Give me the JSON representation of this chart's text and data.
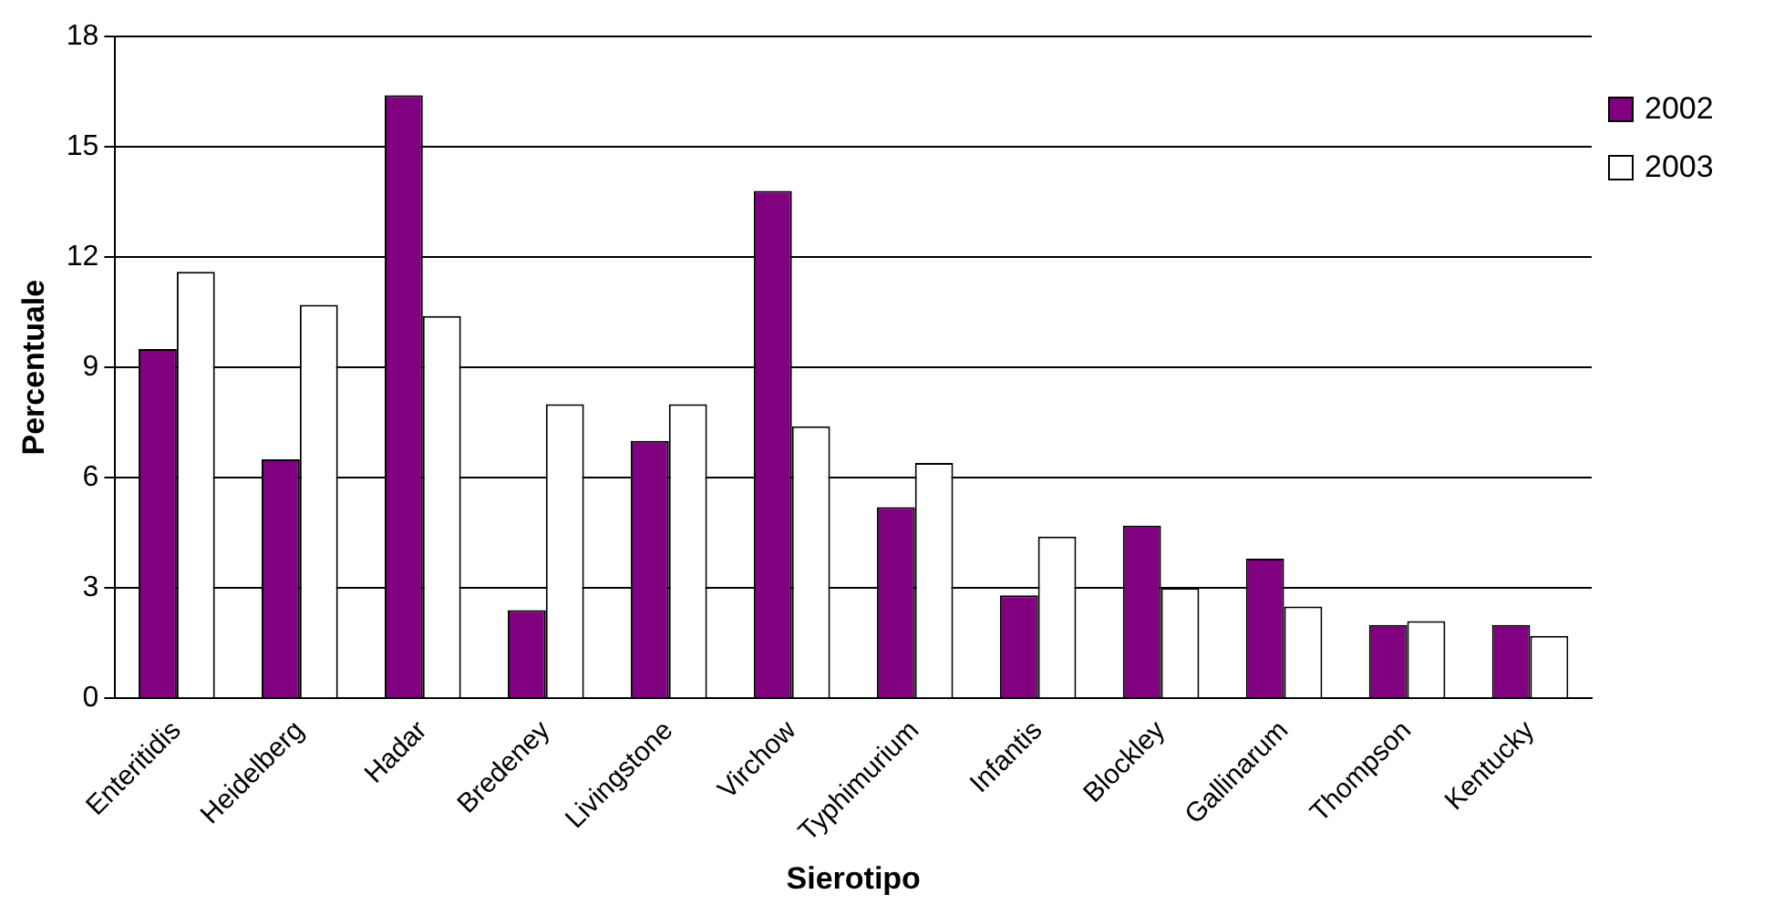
{
  "chart_data": {
    "type": "bar",
    "xlabel": "Sierotipo",
    "ylabel": "Percentuale",
    "categories": [
      "Enteritidis",
      "Heidelberg",
      "Hadar",
      "Bredeney",
      "Livingstone",
      "Virchow",
      "Typhimurium",
      "Infantis",
      "Blockley",
      "Gallinarum",
      "Thompson",
      "Kentucky"
    ],
    "series": [
      {
        "name": "2002",
        "color": "#800080",
        "values": [
          9.5,
          6.5,
          16.4,
          2.4,
          7.0,
          13.8,
          5.2,
          2.8,
          4.7,
          3.8,
          2.0,
          2.0
        ]
      },
      {
        "name": "2003",
        "color": "#ffffff",
        "values": [
          11.6,
          10.7,
          10.4,
          8.0,
          8.0,
          7.4,
          6.4,
          4.4,
          3.0,
          2.5,
          2.1,
          1.7
        ]
      }
    ],
    "ylim": [
      0,
      18
    ],
    "yticks": [
      0,
      3,
      6,
      9,
      12,
      15,
      18
    ],
    "grid": "y",
    "legend": "right"
  }
}
